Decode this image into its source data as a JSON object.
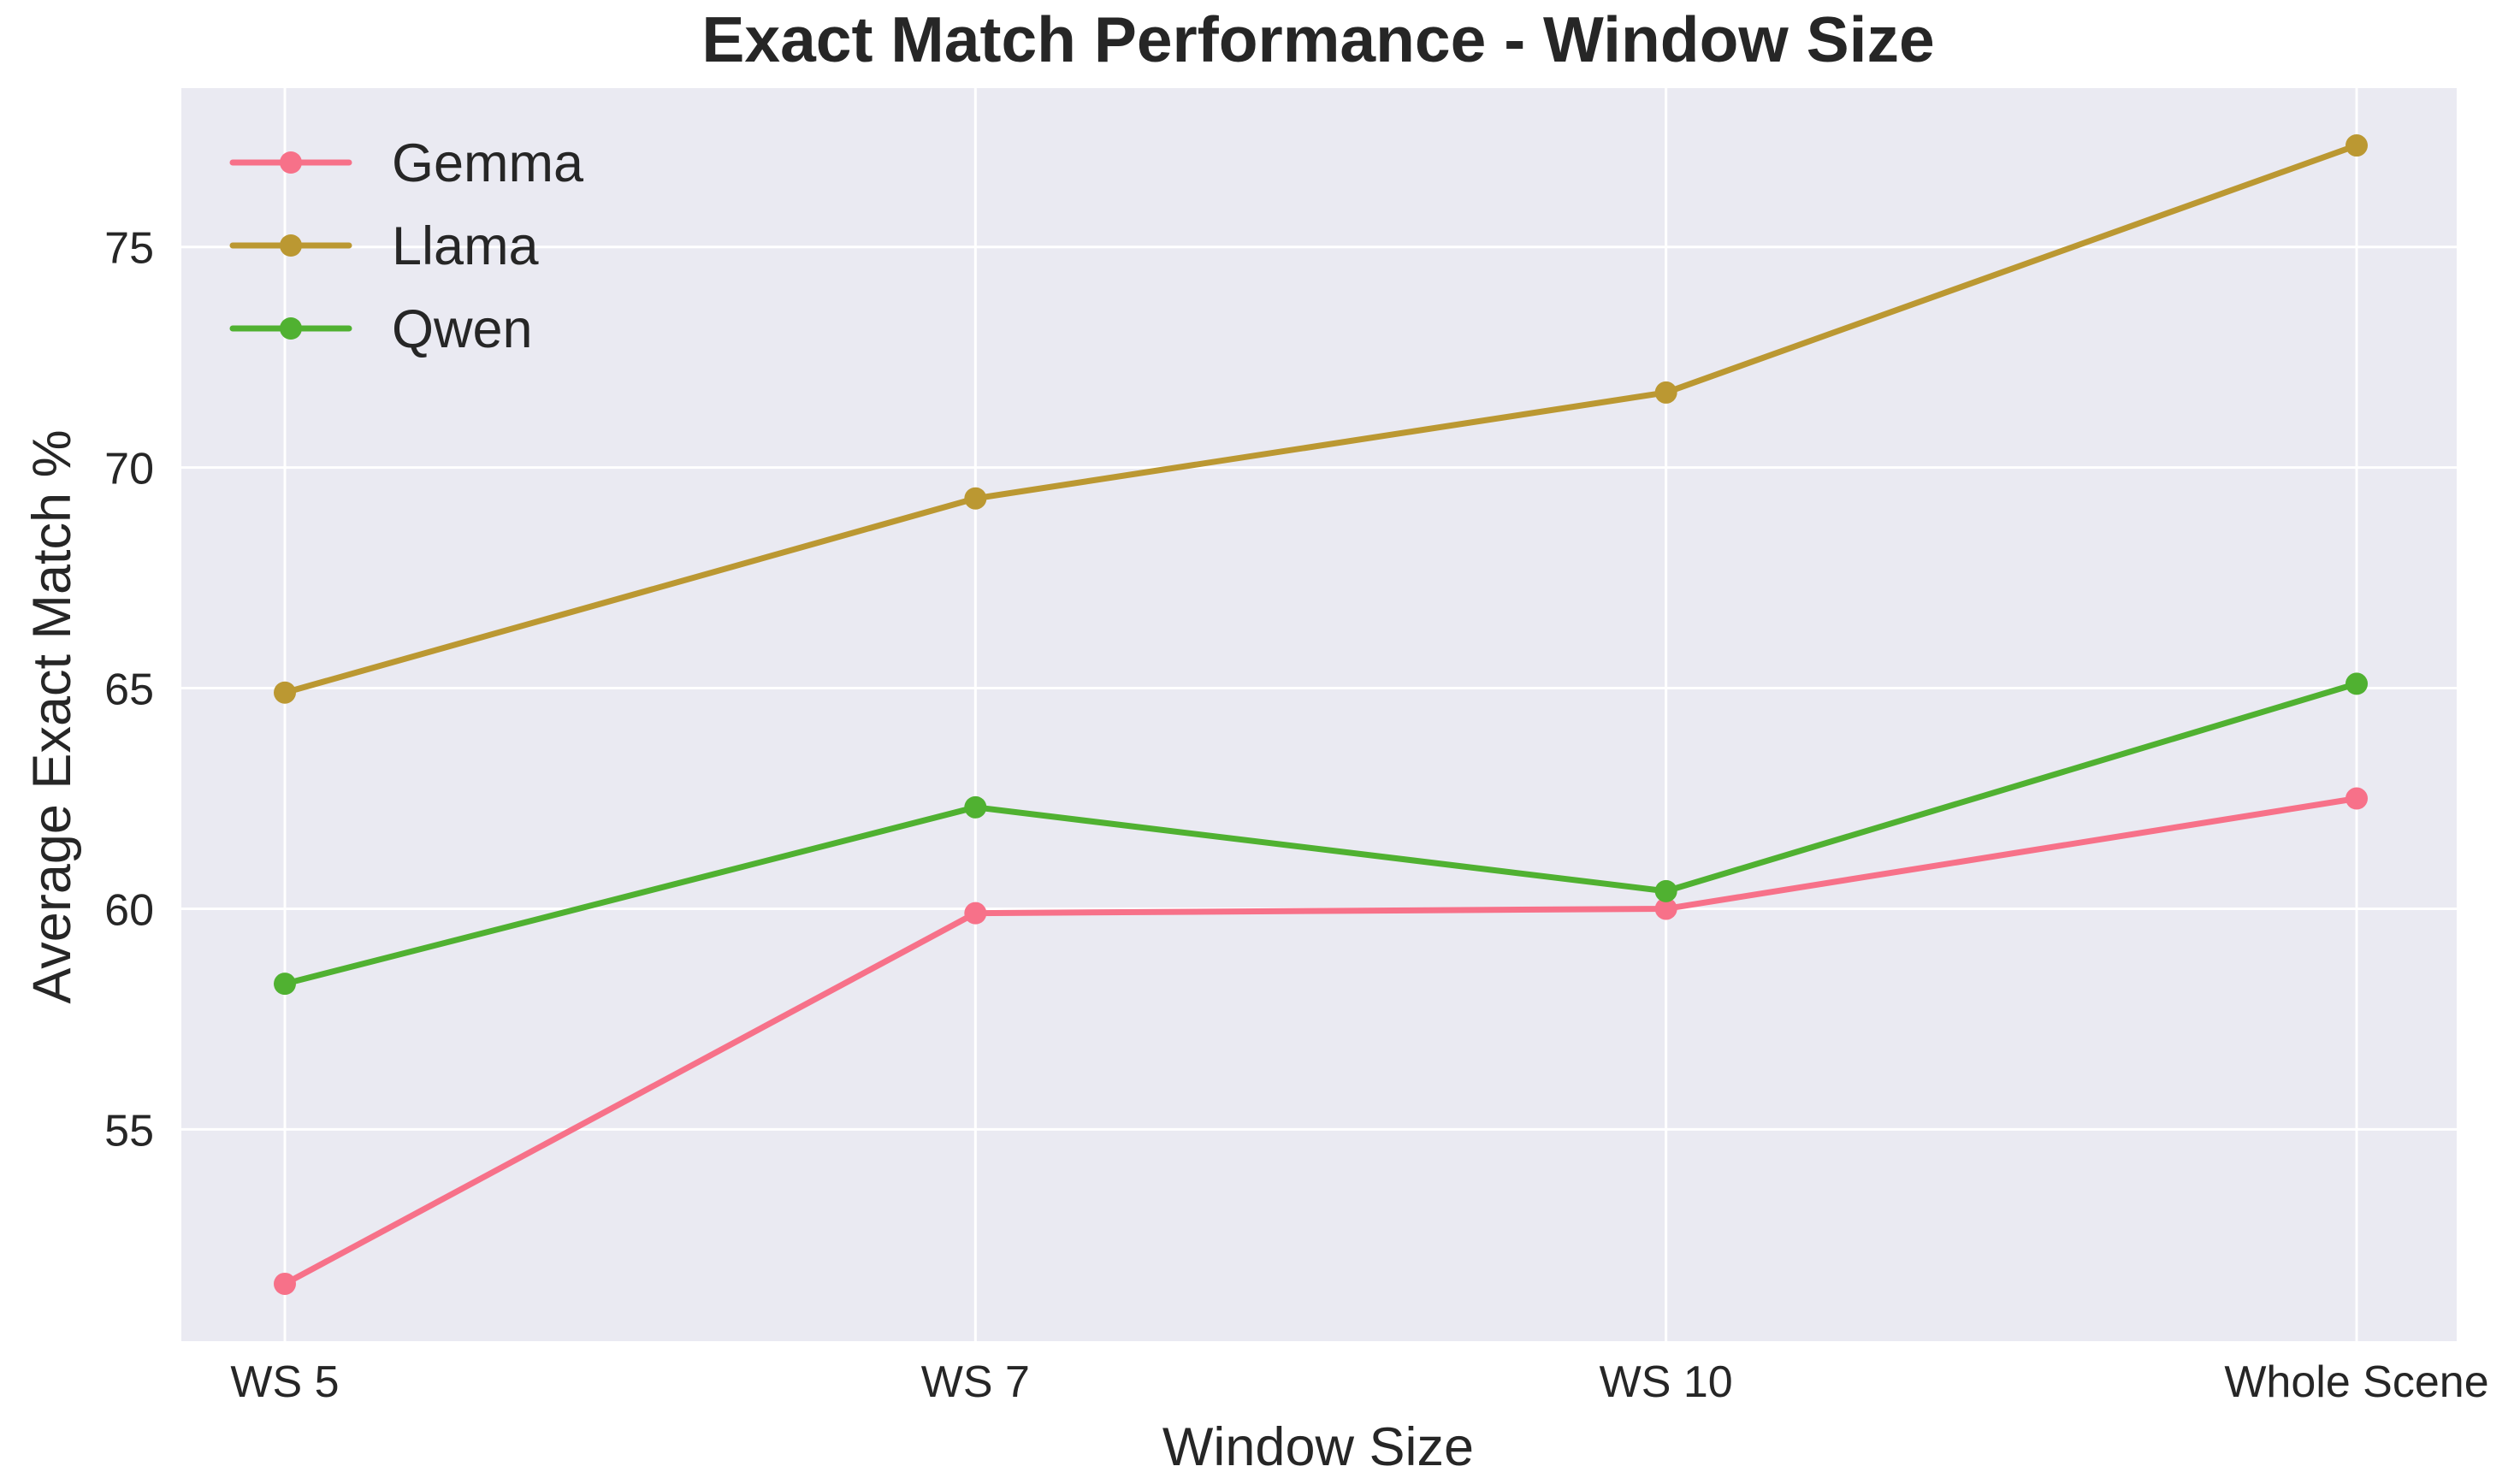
{
  "chart_data": {
    "type": "line",
    "title": "Exact Match Performance - Window Size",
    "xlabel": "Window Size",
    "ylabel": "Average Exact Match %",
    "categories": [
      "WS 5",
      "WS 7",
      "WS 10",
      "Whole Scene"
    ],
    "ylim": [
      50.2,
      78.6
    ],
    "yticks": [
      55,
      60,
      65,
      70,
      75
    ],
    "grid": true,
    "legend_position": "top-left",
    "background": "#eaeaf2",
    "series": [
      {
        "name": "Gemma",
        "color": "#f77189",
        "values": [
          51.5,
          59.9,
          60.0,
          62.5
        ]
      },
      {
        "name": "Llama",
        "color": "#bb9832",
        "values": [
          64.9,
          69.3,
          71.7,
          77.3
        ]
      },
      {
        "name": "Qwen",
        "color": "#50b131",
        "values": [
          58.3,
          62.3,
          60.4,
          65.1
        ]
      }
    ]
  }
}
